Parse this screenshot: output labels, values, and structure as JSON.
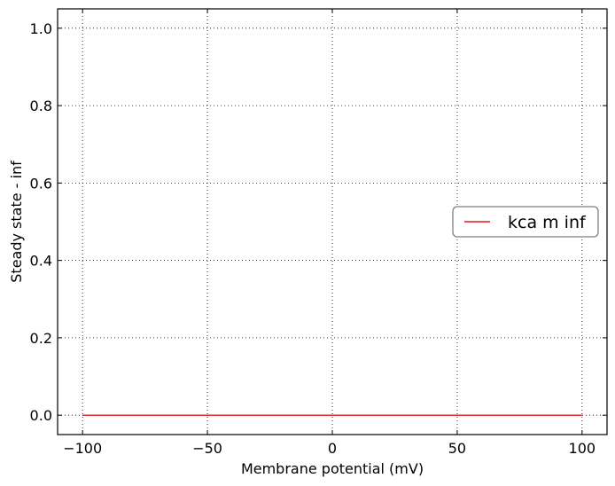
{
  "chart_data": {
    "type": "line",
    "title": "",
    "xlabel": "Membrane potential (mV)",
    "ylabel": "Steady state - inf",
    "xlim": [
      -110,
      110
    ],
    "ylim": [
      -0.05,
      1.05
    ],
    "xticks": [
      -100,
      -50,
      0,
      50,
      100
    ],
    "xtick_labels": [
      "−100",
      "−50",
      "0",
      "50",
      "100"
    ],
    "yticks": [
      0.0,
      0.2,
      0.4,
      0.6,
      0.8,
      1.0
    ],
    "ytick_labels": [
      "0.0",
      "0.2",
      "0.4",
      "0.6",
      "0.8",
      "1.0"
    ],
    "grid": true,
    "grid_style": "dotted",
    "legend_position": "center-right",
    "series": [
      {
        "name": "kca m inf",
        "color": "#e41a1c",
        "x": [
          -100,
          -50,
          0,
          50,
          100
        ],
        "y": [
          0,
          0,
          0,
          0,
          0
        ]
      }
    ]
  }
}
